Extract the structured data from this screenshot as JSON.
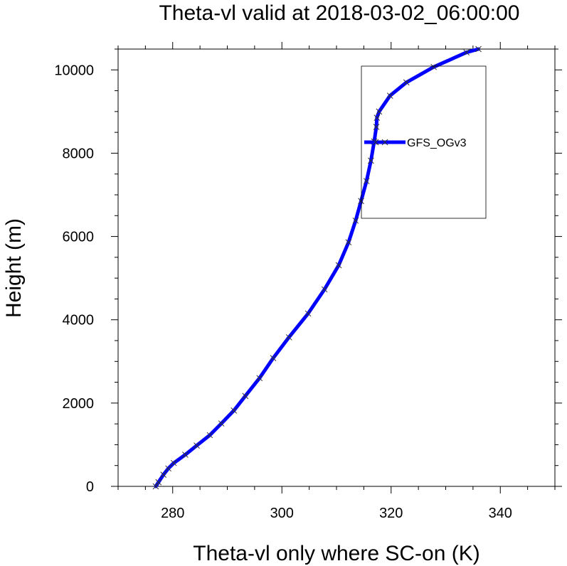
{
  "chart_data": {
    "type": "line",
    "title": "Theta-vl valid at 2018-03-02_06:00:00",
    "xlabel": "Theta-vl only where SC-on (K)",
    "ylabel": "Height (m)",
    "xlim": [
      270,
      350
    ],
    "ylim": [
      0,
      10500
    ],
    "xticks": [
      280,
      300,
      320,
      340
    ],
    "xtick_labels": [
      "280",
      "300",
      "320",
      "340"
    ],
    "yticks": [
      0,
      2000,
      4000,
      6000,
      8000,
      10000
    ],
    "ytick_labels": [
      "0",
      "2000",
      "4000",
      "6000",
      "8000",
      "10000"
    ],
    "legend": "inside-right, upper half",
    "grid": false,
    "series": [
      {
        "name": "GFS_OGv3",
        "color": "#0000ff",
        "marker": "x",
        "x": [
          276.9,
          277.4,
          278.3,
          279.2,
          280.2,
          282.3,
          284.4,
          286.8,
          288.9,
          291.2,
          293.3,
          295.9,
          298.4,
          301.3,
          304.8,
          307.8,
          310.4,
          312.2,
          313.5,
          314.5,
          315.5,
          316.3,
          316.9,
          317.3,
          317.4,
          317.8,
          319.8,
          322.8,
          327.8,
          333.8,
          336.0
        ],
        "y": [
          0,
          100,
          280,
          430,
          560,
          760,
          980,
          1230,
          1510,
          1820,
          2170,
          2600,
          3080,
          3580,
          4150,
          4730,
          5310,
          5860,
          6380,
          6850,
          7330,
          7820,
          8280,
          8630,
          8850,
          9000,
          9380,
          9700,
          10070,
          10420,
          10500
        ]
      }
    ]
  }
}
